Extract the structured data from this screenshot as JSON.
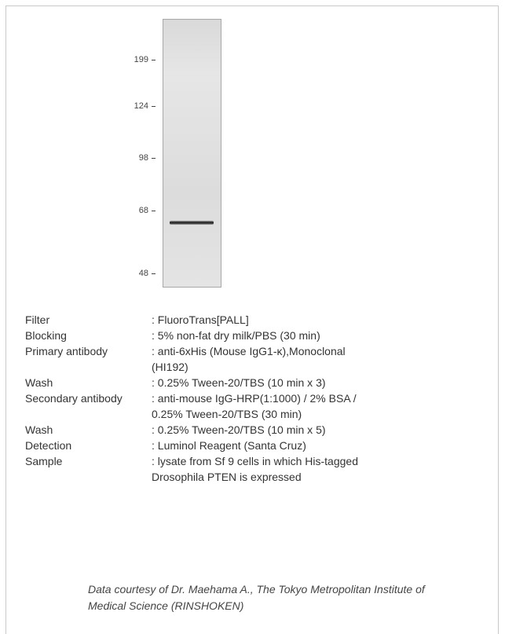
{
  "blot": {
    "markers": [
      {
        "label": "199"
      },
      {
        "label": "124"
      },
      {
        "label": "98"
      },
      {
        "label": "68"
      },
      {
        "label": "48"
      }
    ]
  },
  "conditions": [
    {
      "key": "Filter",
      "value": ": FluoroTrans[PALL]"
    },
    {
      "key": "Blocking",
      "value": ": 5% non-fat dry milk/PBS (30 min)"
    },
    {
      "key": "Primary antibody",
      "value": ": anti-6xHis (Mouse IgG1-κ),Monoclonal (HI192)"
    },
    {
      "key": "Wash",
      "value": ": 0.25% Tween-20/TBS (10 min x 3)"
    },
    {
      "key": "Secondary antibody",
      "value": ": anti-mouse IgG-HRP(1:1000) / 2% BSA / 0.25% Tween-20/TBS (30 min)"
    },
    {
      "key": "Wash",
      "value": ": 0.25% Tween-20/TBS (10 min x 5)"
    },
    {
      "key": "Detection",
      "value": ": Luminol Reagent (Santa Cruz)"
    },
    {
      "key": "Sample",
      "value": ": lysate from Sf 9 cells in which His-tagged Drosophila PTEN is expressed"
    }
  ],
  "credit": "Data courtesy of Dr. Maehama A., The Tokyo Metropolitan Institute of Medical Science (RINSHOKEN)"
}
